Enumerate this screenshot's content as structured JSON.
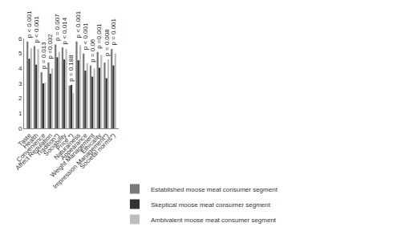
{
  "chart_data": {
    "type": "bar",
    "categories": [
      "Taste",
      "Health",
      "Convenience",
      "Affect Regulation",
      "Tradition*)",
      "Sociability",
      "Price *)",
      "Naturalness",
      "Appearance",
      "Weight Management",
      "Ethicality",
      "Impression Management*)",
      "Societal norms*)"
    ],
    "series": [
      {
        "name": "Established moose meat consumer segment",
        "color": "#7a7a7a",
        "values": [
          5.8,
          5.5,
          3.75,
          4.4,
          5.6,
          5.4,
          2.85,
          5.8,
          5.0,
          4.2,
          5.1,
          4.4,
          5.3
        ]
      },
      {
        "name": "Skeptical moose meat consumer segment",
        "color": "#333333",
        "values": [
          4.65,
          4.25,
          3.0,
          3.65,
          4.75,
          4.6,
          2.9,
          4.55,
          3.85,
          3.45,
          4.05,
          3.35,
          4.2
        ]
      },
      {
        "name": "Ambivalent moose meat consumer segment",
        "color": "#bdbdbd",
        "values": [
          5.35,
          5.3,
          3.05,
          4.0,
          5.1,
          5.3,
          2.35,
          5.55,
          4.35,
          4.0,
          4.9,
          4.6,
          5.0
        ]
      }
    ],
    "annotations": [
      {
        "category": "Taste",
        "text": "p < 0.001"
      },
      {
        "category": "Health",
        "text": "p < 0.001"
      },
      {
        "category": "Convenience",
        "text": "p = 0.013"
      },
      {
        "category": "Affect Regulation",
        "text": "p =0.032"
      },
      {
        "category": "Tradition*)",
        "text": "p = 0.007"
      },
      {
        "category": "Sociability",
        "text": "p < 0.014"
      },
      {
        "category": "Price *)",
        "text": "p = 0.188"
      },
      {
        "category": "Naturalness",
        "text": "p < 0.001"
      },
      {
        "category": "Appearance",
        "text": "p < 0.001"
      },
      {
        "category": "Weight Management",
        "text": "p = 0.06"
      },
      {
        "category": "Ethicality",
        "text": "p =0.001"
      },
      {
        "category": "Impression Management*)",
        "text": "p = 0.008"
      },
      {
        "category": "Societal norms*)",
        "text": "p = 0.001"
      }
    ],
    "ylim": [
      0,
      6
    ],
    "yticks": [
      0,
      1,
      2,
      3,
      4,
      5,
      6
    ],
    "grid": false,
    "legend": "bottom"
  }
}
